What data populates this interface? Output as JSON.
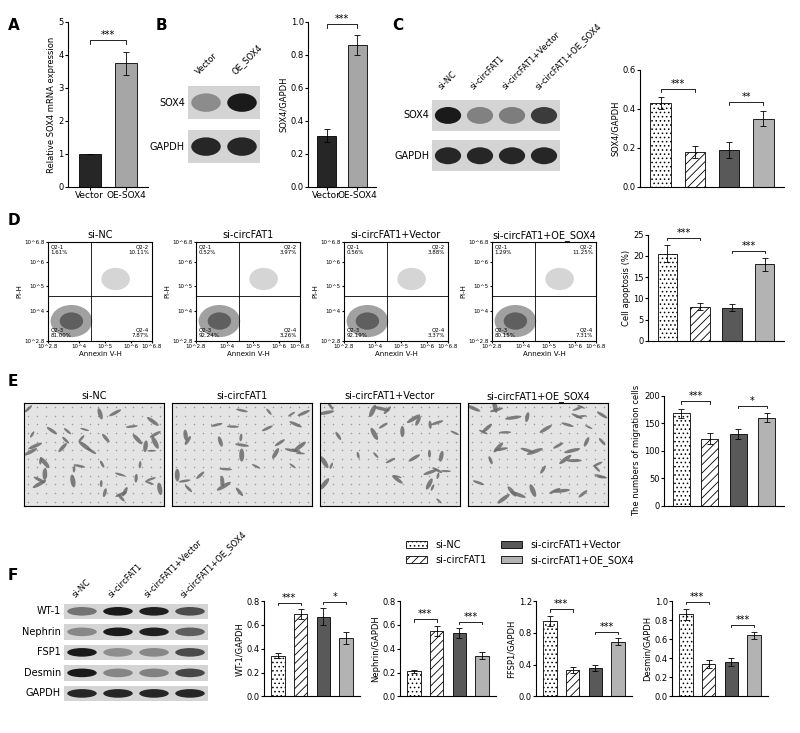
{
  "panel_labels": [
    "A",
    "B",
    "C",
    "D",
    "E",
    "F"
  ],
  "chart_data": [
    {
      "type": "bar",
      "categories": [
        "Vector",
        "OE-SOX4"
      ],
      "values": [
        1.0,
        3.75
      ],
      "errors": [
        0.0,
        0.35
      ],
      "colors": [
        "#262626",
        "#a6a6a6"
      ],
      "ylabel": "Relative SOX4 mRNA expression",
      "ylim": [
        0,
        5
      ],
      "yticks": [
        0,
        1,
        2,
        3,
        4,
        5
      ],
      "annotations": [
        {
          "from": 0,
          "to": 1,
          "text": "***"
        }
      ]
    },
    {
      "type": "bar",
      "categories": [
        "Vector",
        "OE-SOX4"
      ],
      "values": [
        0.31,
        0.86
      ],
      "errors": [
        0.04,
        0.06
      ],
      "colors": [
        "#262626",
        "#a6a6a6"
      ],
      "ylabel": "SOX4/GAPDH",
      "ylim": [
        0.0,
        1.0
      ],
      "yticks": [
        0.0,
        0.2,
        0.4,
        0.6,
        0.8,
        1.0
      ],
      "annotations": [
        {
          "from": 0,
          "to": 1,
          "text": "***"
        }
      ]
    },
    {
      "type": "bar",
      "categories": [
        "si-NC",
        "si-circFAT1",
        "si-circFAT1+Vector",
        "si-circFAT1+OE_SOX4"
      ],
      "values": [
        0.43,
        0.18,
        0.19,
        0.35
      ],
      "errors": [
        0.03,
        0.03,
        0.04,
        0.04
      ],
      "tick_labels": "y",
      "colors": [
        "#ffffff",
        "#ffffff",
        "#595959",
        "#b3b3b3"
      ],
      "ylabel": "SOX4/GAPDH",
      "ylim": [
        0.0,
        0.6
      ],
      "yticks": [
        0.0,
        0.2,
        0.4,
        0.6
      ],
      "annotations": [
        {
          "from": 0,
          "to": 1,
          "text": "***"
        },
        {
          "from": 2,
          "to": 3,
          "text": "**"
        }
      ]
    },
    {
      "type": "bar",
      "categories": [
        "si-NC",
        "si-circFAT1",
        "si-circFAT1+Vector",
        "si-circFAT1+OE_SOX4"
      ],
      "values": [
        20.5,
        8.0,
        7.8,
        18.0
      ],
      "errors": [
        2.0,
        0.8,
        0.8,
        1.5
      ],
      "tick_labels": "y",
      "colors": [
        "#ffffff",
        "#ffffff",
        "#595959",
        "#b3b3b3"
      ],
      "ylabel": "Cell apoptosis (%)",
      "ylim": [
        0,
        25
      ],
      "yticks": [
        0,
        5,
        10,
        15,
        20,
        25
      ],
      "annotations": [
        {
          "from": 0,
          "to": 1,
          "text": "***"
        },
        {
          "from": 2,
          "to": 3,
          "text": "***"
        }
      ]
    },
    {
      "type": "bar",
      "categories": [
        "si-NC",
        "si-circFAT1",
        "si-circFAT1+Vector",
        "si-circFAT1+OE_SOX4"
      ],
      "values": [
        168,
        122,
        130,
        160
      ],
      "errors": [
        8,
        10,
        9,
        8
      ],
      "tick_labels": "y",
      "colors": [
        "#ffffff",
        "#ffffff",
        "#595959",
        "#b3b3b3"
      ],
      "ylabel": "The numbers of migration cells",
      "ylim": [
        0,
        200
      ],
      "yticks": [
        0,
        50,
        100,
        150,
        200
      ],
      "annotations": [
        {
          "from": 0,
          "to": 1,
          "text": "***"
        },
        {
          "from": 2,
          "to": 3,
          "text": "*"
        }
      ]
    },
    {
      "type": "bar",
      "categories": [
        "si-NC",
        "si-circFAT1",
        "si-circFAT1+Vector",
        "si-circFAT1+OE_SOX4"
      ],
      "values": [
        0.34,
        0.69,
        0.67,
        0.49
      ],
      "errors": [
        0.02,
        0.04,
        0.07,
        0.05
      ],
      "tick_labels": "y",
      "colors": [
        "#ffffff",
        "#ffffff",
        "#595959",
        "#b3b3b3"
      ],
      "ylabel": "WT-1/GAPDH",
      "ylim": [
        0.0,
        0.8
      ],
      "yticks": [
        0.0,
        0.2,
        0.4,
        0.6,
        0.8
      ],
      "annotations": [
        {
          "from": 0,
          "to": 1,
          "text": "***"
        },
        {
          "from": 2,
          "to": 3,
          "text": "*"
        }
      ]
    },
    {
      "type": "bar",
      "categories": [
        "si-NC",
        "si-circFAT1",
        "si-circFAT1+Vector",
        "si-circFAT1+OE_SOX4"
      ],
      "values": [
        0.21,
        0.55,
        0.53,
        0.34
      ],
      "errors": [
        0.01,
        0.04,
        0.04,
        0.03
      ],
      "tick_labels": "y",
      "colors": [
        "#ffffff",
        "#ffffff",
        "#595959",
        "#b3b3b3"
      ],
      "ylabel": "Nephrin/GAPDH",
      "ylim": [
        0.0,
        0.8
      ],
      "yticks": [
        0.0,
        0.2,
        0.4,
        0.6,
        0.8
      ],
      "annotations": [
        {
          "from": 0,
          "to": 1,
          "text": "***"
        },
        {
          "from": 2,
          "to": 3,
          "text": "***"
        }
      ]
    },
    {
      "type": "bar",
      "categories": [
        "si-NC",
        "si-circFAT1",
        "si-circFAT1+Vector",
        "si-circFAT1+OE_SOX4"
      ],
      "values": [
        0.95,
        0.33,
        0.36,
        0.69
      ],
      "errors": [
        0.06,
        0.04,
        0.04,
        0.04
      ],
      "tick_labels": "y",
      "colors": [
        "#ffffff",
        "#ffffff",
        "#595959",
        "#b3b3b3"
      ],
      "ylabel": "FFSP1/GAPDH",
      "ylim": [
        0.0,
        1.2
      ],
      "yticks": [
        0.0,
        0.4,
        0.8,
        1.2
      ],
      "annotations": [
        {
          "from": 0,
          "to": 1,
          "text": "***"
        },
        {
          "from": 2,
          "to": 3,
          "text": "***"
        }
      ]
    },
    {
      "type": "bar",
      "categories": [
        "si-NC",
        "si-circFAT1",
        "si-circFAT1+Vector",
        "si-circFAT1+OE_SOX4"
      ],
      "values": [
        0.86,
        0.34,
        0.36,
        0.64
      ],
      "errors": [
        0.06,
        0.04,
        0.04,
        0.04
      ],
      "tick_labels": "y",
      "colors": [
        "#ffffff",
        "#ffffff",
        "#595959",
        "#b3b3b3"
      ],
      "ylabel": "Desmin/GAPDH",
      "ylim": [
        0.0,
        1.0
      ],
      "yticks": [
        0.0,
        0.2,
        0.4,
        0.6,
        0.8,
        1.0
      ],
      "annotations": [
        {
          "from": 0,
          "to": 1,
          "text": "***"
        },
        {
          "from": 2,
          "to": 3,
          "text": "***"
        }
      ]
    }
  ],
  "figure_legend": [
    "si-NC",
    "si-circFAT1",
    "si-circFAT1+Vector",
    "si-circFAT1+OE_SOX4"
  ],
  "blots": [
    {
      "rows": [
        "SOX4",
        "GAPDH"
      ],
      "lanes": [
        "Vector",
        "OE_SOX4"
      ]
    },
    {
      "rows": [
        "SOX4",
        "GAPDH"
      ],
      "lanes": [
        "si-NC",
        "si-circFAT1",
        "si-circFAT1+Vector",
        "si-circFAT1+OE_SOX4"
      ]
    },
    {
      "rows": [
        "WT-1",
        "Nephrin",
        "FSP1",
        "Desmin",
        "GAPDH"
      ],
      "lanes": [
        "si-NC",
        "si-circFAT1",
        "si-circFAT1+Vector",
        "si-circFAT1+OE_SOX4"
      ]
    }
  ],
  "flow": {
    "xlabel": "Annexin V-H",
    "ylabel": "PI-H",
    "ticks": [
      {
        "value": 2.8,
        "label": "10^2.8"
      },
      {
        "value": 4,
        "label": "10^4"
      },
      {
        "value": 5,
        "label": "10^5"
      },
      {
        "value": 6,
        "label": "10^6"
      },
      {
        "value": 6.8,
        "label": "10^6.8"
      }
    ],
    "panels": [
      {
        "title": "si-NC",
        "quadrants": [
          [
            "Q2-1",
            "1.61%"
          ],
          [
            "Q2-2",
            "10.11%"
          ],
          [
            "Q2-3",
            "81.00%"
          ],
          [
            "Q2-4",
            "7.87%"
          ]
        ]
      },
      {
        "title": "si-circFAT1",
        "quadrants": [
          [
            "Q2-1",
            "0.52%"
          ],
          [
            "Q2-2",
            "3.97%"
          ],
          [
            "Q2-3",
            "92.24%"
          ],
          [
            "Q2-4",
            "3.26%"
          ]
        ]
      },
      {
        "title": "si-circFAT1+Vector",
        "quadrants": [
          [
            "Q2-1",
            "0.56%"
          ],
          [
            "Q2-2",
            "3.88%"
          ],
          [
            "Q2-3",
            "92.19%"
          ],
          [
            "Q2-4",
            "3.37%"
          ]
        ]
      },
      {
        "title": "si-circFAT1+OE_SOX4",
        "quadrants": [
          [
            "Q2-1",
            "1.29%"
          ],
          [
            "Q2-2",
            "11.25%"
          ],
          [
            "Q2-3",
            "80.15%"
          ],
          [
            "Q2-4",
            "7.31%"
          ]
        ]
      }
    ]
  },
  "migration": {
    "titles": [
      "si-NC",
      "si-circFAT1",
      "si-circFAT1+Vector",
      "si-circFAT1+OE_SOX4"
    ]
  }
}
